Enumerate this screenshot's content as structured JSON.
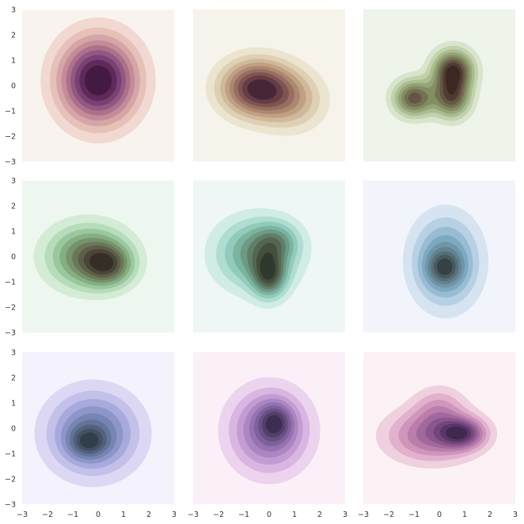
{
  "chart_data": {
    "type": "kde_contour_grid",
    "rows": 3,
    "cols": 3,
    "xlim": [
      -3,
      3
    ],
    "ylim": [
      -3,
      3
    ],
    "xticks": [
      "−3",
      "−2",
      "−1",
      "0",
      "1",
      "2",
      "3"
    ],
    "yticks": [
      "3",
      "2",
      "1",
      "0",
      "−1",
      "−2",
      "−3"
    ],
    "levels": 9,
    "grid": false,
    "panels": [
      {
        "colors": [
          "#f9f3ef",
          "#f1d9d1",
          "#e6c0b9",
          "#d6a5a6",
          "#c38c98",
          "#ac718c",
          "#925882",
          "#7a4174",
          "#5f2a5b",
          "#441a42"
        ],
        "peaks": [
          {
            "x": 0.0,
            "y": 0.2,
            "sx": 1.05,
            "sy": 1.15,
            "w": 1.0
          }
        ]
      },
      {
        "colors": [
          "#f5f3ea",
          "#ebe4d0",
          "#dfd0b4",
          "#d0b99a",
          "#c0a083",
          "#ad876f",
          "#976f60",
          "#7f5553",
          "#663c47",
          "#472636"
        ],
        "peaks": [
          {
            "x": -0.5,
            "y": -0.1,
            "sx": 0.95,
            "sy": 0.75,
            "w": 1.0
          },
          {
            "x": 0.9,
            "y": -0.6,
            "sx": 0.9,
            "sy": 0.8,
            "w": 0.4
          }
        ]
      },
      {
        "colors": [
          "#eef4ea",
          "#d8e5cc",
          "#c1d2ad",
          "#aabd90",
          "#95a577",
          "#848c63",
          "#757153",
          "#655645",
          "#4f3c32",
          "#3a2822"
        ],
        "peaks": [
          {
            "x": -1.0,
            "y": -0.5,
            "sx": 0.55,
            "sy": 0.5,
            "w": 0.85
          },
          {
            "x": 0.55,
            "y": 0.6,
            "sx": 0.55,
            "sy": 0.55,
            "w": 1.0
          },
          {
            "x": 0.5,
            "y": -0.5,
            "sx": 0.5,
            "sy": 0.55,
            "w": 0.8
          }
        ]
      },
      {
        "colors": [
          "#eef7ef",
          "#d4ecd6",
          "#b6dcbb",
          "#9ac79e",
          "#85ae83",
          "#76936c",
          "#6b785a",
          "#5e5e48",
          "#4b4537",
          "#342e26"
        ],
        "peaks": [
          {
            "x": -0.4,
            "y": 0.0,
            "sx": 1.1,
            "sy": 0.85,
            "w": 0.9
          },
          {
            "x": 0.4,
            "y": -0.35,
            "sx": 0.65,
            "sy": 0.55,
            "w": 0.7
          }
        ]
      },
      {
        "colors": [
          "#eef7f5",
          "#d0ece4",
          "#b0ddd1",
          "#92cabb",
          "#7cb3a0",
          "#6c9a85",
          "#5f7f6a",
          "#536651",
          "#444f3d",
          "#303a2c"
        ],
        "peaks": [
          {
            "x": -0.5,
            "y": 0.1,
            "sx": 1.1,
            "sy": 0.95,
            "w": 0.8
          },
          {
            "x": 0.0,
            "y": -0.75,
            "sx": 0.45,
            "sy": 0.6,
            "w": 0.9
          },
          {
            "x": 0.3,
            "y": 0.6,
            "sx": 0.6,
            "sy": 0.5,
            "w": 0.45
          }
        ]
      },
      {
        "colors": [
          "#f2f4fb",
          "#d6e3f1",
          "#b7d0e4",
          "#98bcd4",
          "#7fa8c0",
          "#6e95a8",
          "#638290",
          "#586e77",
          "#485a5e",
          "#354246"
        ],
        "peaks": [
          {
            "x": 0.25,
            "y": -0.2,
            "sx": 0.9,
            "sy": 1.2,
            "w": 0.85
          },
          {
            "x": 0.2,
            "y": -0.45,
            "sx": 0.45,
            "sy": 0.45,
            "w": 0.7
          }
        ]
      },
      {
        "colors": [
          "#f4f2fd",
          "#dcd8f4",
          "#c3c0e9",
          "#a8a9dc",
          "#8e96c9",
          "#7685b2",
          "#637498",
          "#55617e",
          "#445064",
          "#30404a"
        ],
        "peaks": [
          {
            "x": -0.2,
            "y": -0.2,
            "sx": 1.2,
            "sy": 1.1,
            "w": 0.9
          },
          {
            "x": -0.4,
            "y": -0.55,
            "sx": 0.5,
            "sy": 0.4,
            "w": 0.6
          }
        ]
      },
      {
        "colors": [
          "#fbf0f8",
          "#ecd3ee",
          "#d8b6e1",
          "#c29cd3",
          "#ab86c2",
          "#9573b1",
          "#7f619b",
          "#6a5184",
          "#54406b",
          "#3c2e52"
        ],
        "peaks": [
          {
            "x": 0.0,
            "y": -0.1,
            "sx": 1.05,
            "sy": 1.1,
            "w": 0.85
          },
          {
            "x": 0.25,
            "y": 0.25,
            "sx": 0.45,
            "sy": 0.5,
            "w": 0.6
          }
        ]
      },
      {
        "colors": [
          "#fcf1f4",
          "#efd0df",
          "#e2b1cd",
          "#cf95bb",
          "#b97eac",
          "#a1699c",
          "#8a568d",
          "#72457c",
          "#5a3668",
          "#40284f"
        ],
        "peaks": [
          {
            "x": -0.3,
            "y": -0.3,
            "sx": 1.2,
            "sy": 0.7,
            "w": 0.7
          },
          {
            "x": 0.9,
            "y": -0.2,
            "sx": 0.6,
            "sy": 0.4,
            "w": 0.85
          },
          {
            "x": 0.0,
            "y": 0.8,
            "sx": 0.7,
            "sy": 0.6,
            "w": 0.35
          }
        ]
      }
    ]
  }
}
